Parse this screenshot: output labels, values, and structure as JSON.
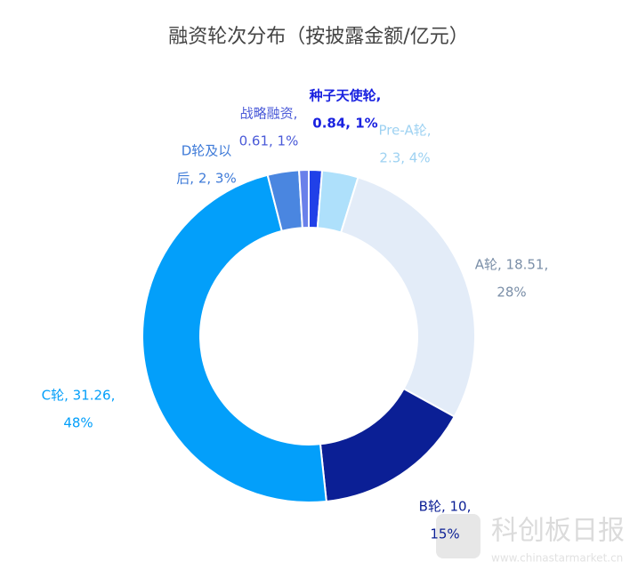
{
  "chart_data": {
    "type": "donut",
    "title": "融资轮次分布（按披露金额/亿元）",
    "categories": [
      "种子天使轮",
      "Pre-A轮",
      "A轮",
      "B轮",
      "C轮",
      "D轮及以后",
      "战略融资"
    ],
    "values": [
      0.84,
      2.3,
      18.51,
      10,
      31.26,
      2,
      0.61
    ],
    "percentages": [
      1,
      4,
      28,
      15,
      48,
      3,
      1
    ],
    "labels": [
      [
        "种子天使轮,",
        "0.84, 1%"
      ],
      [
        "Pre-A轮,",
        "2.3, 4%"
      ],
      [
        "A轮, 18.51,",
        "28%"
      ],
      [
        "B轮, 10,",
        "15%"
      ],
      [
        "C轮, 31.26,",
        "48%"
      ],
      [
        "D轮及以",
        "后, 2, 3%"
      ],
      [
        "战略融资,",
        "0.61, 1%"
      ]
    ],
    "colors": [
      "#2040e8",
      "#aee0fb",
      "#e3ecf8",
      "#0b1f95",
      "#039ffa",
      "#4a86e0",
      "#6a80ea"
    ],
    "label_colors": [
      "#1a22e0",
      "#9ed2f2",
      "#7b8fa8",
      "#0b1f95",
      "#039ffa",
      "#3f7bd8",
      "#4a5ad8"
    ],
    "watermark": {
      "name": "科创板日报",
      "url": "www.chinastarmarket.cn"
    }
  }
}
